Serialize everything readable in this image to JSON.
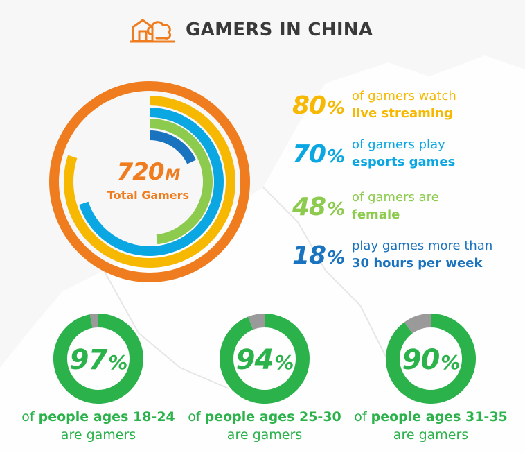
{
  "header": {
    "title": "GAMERS IN CHINA",
    "icon": "house-cloud-icon"
  },
  "center": {
    "number": "720",
    "unit": "M",
    "label": "Total Gamers"
  },
  "stats": [
    {
      "pct": "80",
      "sign": "%",
      "line1": "of gamers watch",
      "line2": "live streaming",
      "color": "#f6b800"
    },
    {
      "pct": "70",
      "sign": "%",
      "line1": "of gamers play",
      "line2": "esports games",
      "color": "#0aa7e3"
    },
    {
      "pct": "48",
      "sign": "%",
      "line1": "of gamers are",
      "line2": "female",
      "color": "#8dcb4e"
    },
    {
      "pct": "18",
      "sign": "%",
      "line1": "play games more than",
      "line2": "30 hours per week",
      "color": "#1a73bf"
    }
  ],
  "donuts": [
    {
      "pct": "97",
      "sign": "%",
      "prefix": "of",
      "bold": "people ages 18-24",
      "line2": "are gamers"
    },
    {
      "pct": "94",
      "sign": "%",
      "prefix": "of",
      "bold": "people ages 25-30",
      "line2": "are gamers"
    },
    {
      "pct": "90",
      "sign": "%",
      "prefix": "of",
      "bold": "people ages 31-35",
      "line2": "are gamers"
    }
  ],
  "colors": {
    "orange": "#ef7d1f",
    "green": "#2bb24b",
    "gray": "#9a9a9a"
  },
  "chart_data": [
    {
      "type": "radial-bar",
      "title": "",
      "total": {
        "value": 720,
        "unit": "M",
        "label": "Total Gamers"
      },
      "series": [
        {
          "name": "of gamers watch live streaming",
          "value": 80,
          "color": "#f6b800"
        },
        {
          "name": "of gamers play esports games",
          "value": 70,
          "color": "#0aa7e3"
        },
        {
          "name": "of gamers are female",
          "value": 48,
          "color": "#8dcb4e"
        },
        {
          "name": "play games more than 30 hours per week",
          "value": 18,
          "color": "#1a73bf"
        }
      ]
    },
    {
      "type": "pie",
      "values": [
        97,
        3
      ],
      "colors": [
        "#2bb24b",
        "#9a9a9a"
      ],
      "label": "of people ages 18-24 are gamers"
    },
    {
      "type": "pie",
      "values": [
        94,
        6
      ],
      "colors": [
        "#2bb24b",
        "#9a9a9a"
      ],
      "label": "of people ages 25-30 are gamers"
    },
    {
      "type": "pie",
      "values": [
        90,
        10
      ],
      "colors": [
        "#2bb24b",
        "#9a9a9a"
      ],
      "label": "of people ages 31-35 are gamers"
    }
  ]
}
